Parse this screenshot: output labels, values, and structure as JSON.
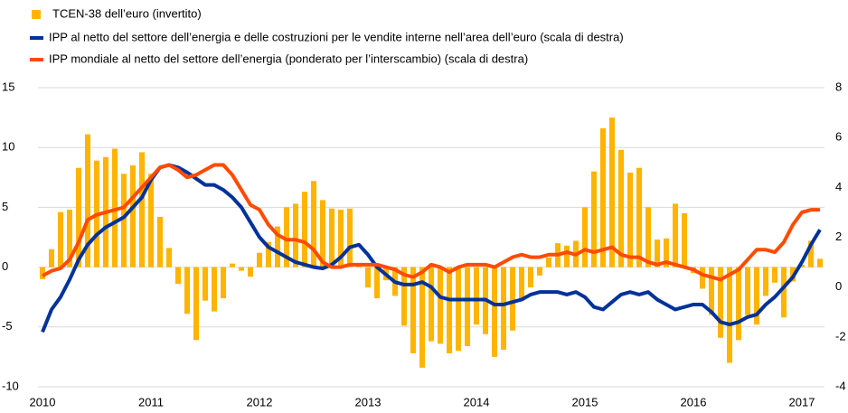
{
  "chart_data": {
    "type": "bar_line",
    "categories": [
      "2010",
      null,
      null,
      null,
      null,
      null,
      null,
      null,
      null,
      null,
      null,
      null,
      "2011",
      null,
      null,
      null,
      null,
      null,
      null,
      null,
      null,
      null,
      null,
      null,
      "2012",
      null,
      null,
      null,
      null,
      null,
      null,
      null,
      null,
      null,
      null,
      null,
      "2013",
      null,
      null,
      null,
      null,
      null,
      null,
      null,
      null,
      null,
      null,
      null,
      "2014",
      null,
      null,
      null,
      null,
      null,
      null,
      null,
      null,
      null,
      null,
      null,
      "2015",
      null,
      null,
      null,
      null,
      null,
      null,
      null,
      null,
      null,
      null,
      null,
      "2016",
      null,
      null,
      null,
      null,
      null,
      null,
      null,
      null,
      null,
      null,
      null,
      "2017",
      null,
      null
    ],
    "series": [
      {
        "name": "TCEN-38 dell’euro (invertito)",
        "type": "bar",
        "color": "#ffb400",
        "values": [
          -1.0,
          1.5,
          4.6,
          4.8,
          8.3,
          11.1,
          8.9,
          9.2,
          9.9,
          7.8,
          8.5,
          9.6,
          7.8,
          4.2,
          1.6,
          -1.4,
          -3.9,
          -6.1,
          -2.8,
          -3.7,
          -2.6,
          0.3,
          -0.3,
          -0.8,
          1.2,
          2.1,
          3.4,
          5.0,
          5.3,
          6.3,
          7.2,
          5.6,
          4.9,
          4.8,
          4.9,
          0.1,
          -1.7,
          -2.6,
          -1.1,
          -2.4,
          -4.9,
          -7.2,
          -8.4,
          -6.2,
          -6.4,
          -7.2,
          -7.0,
          -6.6,
          -4.8,
          -5.6,
          -7.5,
          -6.9,
          -5.3,
          -2.8,
          -1.7,
          -0.7,
          0.8,
          2.0,
          1.8,
          2.2,
          5.0,
          8.0,
          11.6,
          12.5,
          9.8,
          7.9,
          8.3,
          5.0,
          2.3,
          2.4,
          5.3,
          4.5,
          -0.5,
          -1.8,
          -4.0,
          -5.9,
          -8.0,
          -6.1,
          -4.0,
          -4.8,
          -2.4,
          -1.3,
          -4.2,
          -1.2,
          0.2,
          2.2,
          0.7
        ]
      },
      {
        "name": "IPP al netto del settore dell’energia e delle costruzioni per le vendite interne nell’area dell’euro (scala di destra)",
        "type": "line",
        "axis": "y2",
        "color": "#003299",
        "values": [
          -1.8,
          -0.9,
          -0.4,
          0.3,
          1.1,
          1.7,
          2.1,
          2.4,
          2.6,
          2.8,
          3.2,
          3.6,
          4.3,
          4.8,
          4.9,
          4.8,
          4.6,
          4.35,
          4.1,
          4.1,
          3.9,
          3.6,
          3.2,
          2.6,
          2.0,
          1.6,
          1.4,
          1.2,
          1.0,
          0.9,
          0.8,
          0.75,
          0.9,
          1.2,
          1.6,
          1.7,
          1.3,
          0.8,
          0.5,
          0.2,
          0.1,
          0.1,
          0.2,
          0.0,
          -0.4,
          -0.5,
          -0.5,
          -0.5,
          -0.5,
          -0.5,
          -0.7,
          -0.7,
          -0.6,
          -0.5,
          -0.3,
          -0.2,
          -0.2,
          -0.2,
          -0.3,
          -0.2,
          -0.4,
          -0.8,
          -0.9,
          -0.6,
          -0.3,
          -0.2,
          -0.3,
          -0.2,
          -0.5,
          -0.7,
          -0.9,
          -0.8,
          -0.7,
          -0.7,
          -1.0,
          -1.4,
          -1.5,
          -1.4,
          -1.2,
          -1.1,
          -0.7,
          -0.4,
          0.0,
          0.4,
          1.0,
          1.7,
          2.3
        ]
      },
      {
        "name": "IPP mondiale al netto del settore dell’energia (ponderato per l’interscambio) (scala di destra)",
        "type": "line",
        "axis": "y2",
        "color": "#ff4b00",
        "values": [
          0.45,
          0.65,
          0.75,
          1.1,
          1.8,
          2.7,
          2.9,
          3.0,
          3.1,
          3.2,
          3.6,
          4.0,
          4.4,
          4.8,
          4.9,
          4.7,
          4.4,
          4.5,
          4.7,
          4.9,
          4.9,
          4.5,
          3.9,
          3.3,
          3.1,
          2.5,
          2.1,
          1.9,
          1.9,
          1.8,
          1.5,
          1.0,
          0.8,
          0.8,
          0.9,
          0.9,
          0.9,
          0.9,
          0.8,
          0.7,
          0.5,
          0.4,
          0.6,
          0.9,
          0.8,
          0.6,
          0.8,
          0.9,
          0.9,
          0.9,
          0.8,
          1.0,
          1.2,
          1.3,
          1.2,
          1.2,
          1.3,
          1.3,
          1.4,
          1.3,
          1.5,
          1.4,
          1.5,
          1.6,
          1.3,
          1.2,
          1.2,
          1.0,
          0.9,
          1.0,
          0.9,
          0.8,
          0.7,
          0.5,
          0.4,
          0.3,
          0.5,
          0.7,
          1.1,
          1.5,
          1.5,
          1.4,
          1.8,
          2.5,
          3.0,
          3.1,
          3.1
        ]
      }
    ],
    "ylim": [
      -10,
      15
    ],
    "yticks": [
      -10,
      -5,
      0,
      5,
      10,
      15
    ],
    "y2lim": [
      -4,
      8
    ],
    "y2ticks": [
      -4,
      -2,
      0,
      2,
      4,
      6,
      8
    ],
    "grid": true
  }
}
